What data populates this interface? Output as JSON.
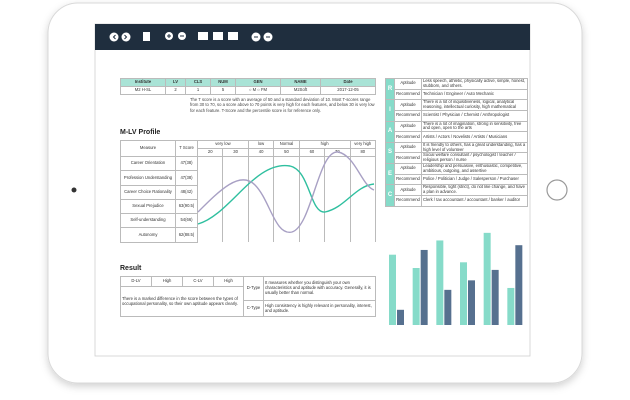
{
  "info_table": {
    "headers": [
      "Institute",
      "LV",
      "CLS",
      "NUM",
      "GEN",
      "NAME",
      "Date"
    ],
    "row": [
      "M2 H-SL",
      "2",
      "1",
      "5",
      "○ M   ○ FM",
      "M2Soft",
      "2017-12-05"
    ]
  },
  "note": "The T score is a score with an average of 50 and a standard deviation of 10. Most T-scores range from 30 to 70, so a score above to 70 points is very high for each features, and below 30 is very low for each feature. T-Score and the percentile score is for reference only.",
  "profile": {
    "title": "M-LV Profile",
    "headers": [
      "Measure",
      "T Score"
    ],
    "scale_groups": [
      "very low",
      "low",
      "Normal",
      "high",
      "very high"
    ],
    "scale_values": [
      "20",
      "30",
      "40",
      "50",
      "60",
      "70",
      "80"
    ],
    "rows": [
      [
        "Career Orientation",
        "47(38)"
      ],
      [
        "Profession Understanding",
        "47(38)"
      ],
      [
        "Career Choice Rationality",
        "48(42)"
      ],
      [
        "Sexual Prejudice",
        "63(90.5)"
      ],
      [
        "Self-understanding",
        "54(66)"
      ],
      [
        "Autonomy",
        "62(88.5)"
      ]
    ]
  },
  "riasec": [
    {
      "letter": "R",
      "aptitude_label": "Aptitude",
      "aptitude": "Less speech, athletic, physically active, simple, honest, stubborn, and others.",
      "recommend_label": "Recommend",
      "recommend": "Technician / Engineer / Auto Mechanic"
    },
    {
      "letter": "I",
      "aptitude_label": "Aptitude",
      "aptitude": "There is a lot of inquisitiveness, logical, analytical reasoning, intellectual curiosity, high mathematical",
      "recommend_label": "Recommend",
      "recommend": "Scientist / Physician / Chemist / Anthropologist"
    },
    {
      "letter": "A",
      "aptitude_label": "Aptitude",
      "aptitude": "There is a lot of imagination, strong in sensitivity, free and open, open to the arts",
      "recommend_label": "Recommend",
      "recommend": "Artists / Actors / Novelists / Artists / Musicians"
    },
    {
      "letter": "S",
      "aptitude_label": "Aptitude",
      "aptitude": "It is friendly to others, has a great understanding, has a high level of volunteer",
      "recommend_label": "Recommend",
      "recommend": "Social welfare consultant / psychologist / teacher / religious person / nurse"
    },
    {
      "letter": "E",
      "aptitude_label": "Aptitude",
      "aptitude": "Leadership and persuasive, enthusiastic, competitive, ambitious, outgoing, and assertive",
      "recommend_label": "Recommend",
      "recommend": "Police / Politician / Judge / Salesperson / Purchaser"
    },
    {
      "letter": "C",
      "aptitude_label": "Aptitude",
      "aptitude": "Responsible, tight (strict), do not like change, and have a plan in advance.",
      "recommend_label": "Recommend",
      "recommend": "Clerk / tax accountant / accountant / banker / auditor"
    }
  ],
  "bar_chart": {
    "type": "bar",
    "ylim": [
      0,
      100
    ],
    "series": [
      {
        "color": "#86dbc9",
        "values": [
          74,
          60,
          89,
          66,
          97,
          39
        ]
      },
      {
        "color": "#56708f",
        "values": [
          16,
          79,
          37,
          47,
          58,
          84
        ]
      }
    ]
  },
  "result": {
    "title": "Result",
    "row": [
      "D-LV",
      "High",
      "C-LV",
      "High"
    ],
    "summary": "There is a marked difference in the score between the types of occupational personality, so their own aptitude appears clearly.",
    "d_type": "D-Type",
    "d_text": "It measures whether you distinguish your own characteristics and aptitude with accuracy. Generally, it is usually better than normal.",
    "c_type": "C-Type",
    "c_text": "High consistency is highly relevant in personality, interest, and aptitude."
  }
}
